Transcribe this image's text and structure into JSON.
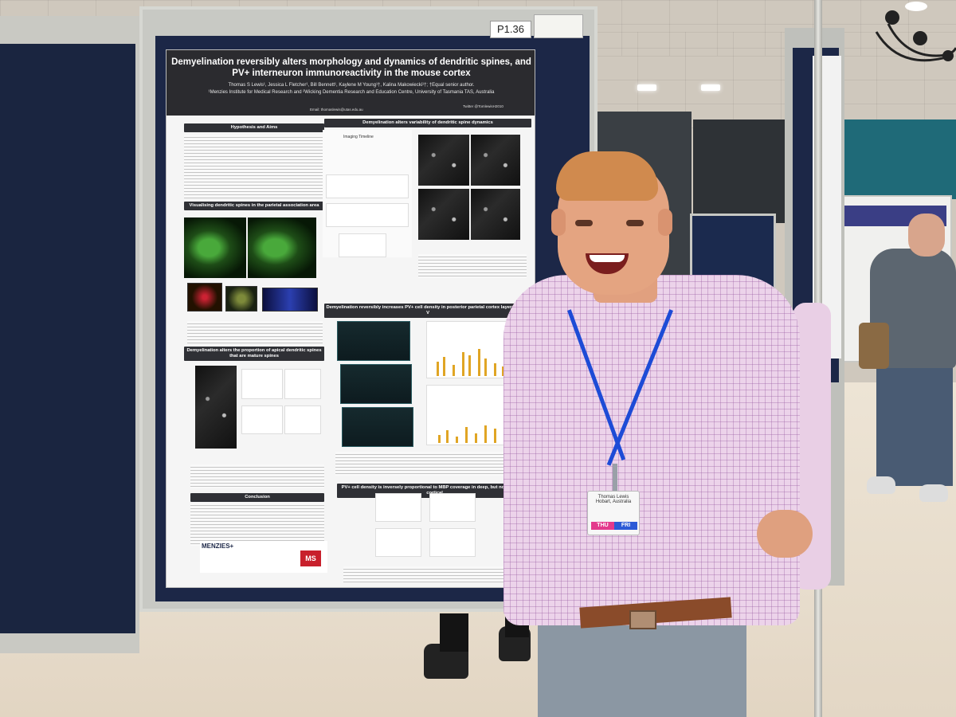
{
  "scene": {
    "description_tag": "conference poster session photo",
    "board_label": "P1.36"
  },
  "poster": {
    "title": "Demyelination reversibly alters morphology and dynamics of dendritic spines, and PV+ interneuron immunoreactivity in the mouse cortex",
    "authors": "Thomas S Lewis¹, Jessica L Fletcher¹, Bill Bennett¹, Kaylene M Young¹†, Kalina Makowiecki¹†; †Equal senior author.",
    "affiliation": "¹Menzies Institute for Medical Research and ²Wicking Dementia Research and Education Centre, University of Tasmania TAS, Australia",
    "email": "Email: thomaslewis@utas.edu.au",
    "twitter": "Twitter @TomlewisH2010",
    "sections": {
      "hypothesis": "Hypothesis and Aims",
      "visualising": "Visualising dendritic spines in the parietal association area",
      "apical": "Demyelination alters the proportion of apical dendritic spines that are mature spines",
      "conclusion": "Conclusion",
      "variability": "Demyelination alters variability of dendritic spine dynamics",
      "pv_density": "Demyelination reversibly increases PV+ cell density in posterior parietal cortex layers IV and V",
      "mbp": "PV+ cell density is inversely proportional to MBP coverage in deep, but not superficial, cortical...",
      "imaging_timeline": "Imaging Timeline"
    },
    "logos": {
      "menzies": "MENZIES+",
      "ms": "MS"
    }
  },
  "badge": {
    "name": "Thomas Lewis",
    "affiliation": "Hobart, Australia",
    "tag_left": "THU",
    "tag_right": "FRI"
  },
  "colors": {
    "board": "#1c2747",
    "lanyard": "#1d4bd6",
    "bars": "#e0a524"
  }
}
